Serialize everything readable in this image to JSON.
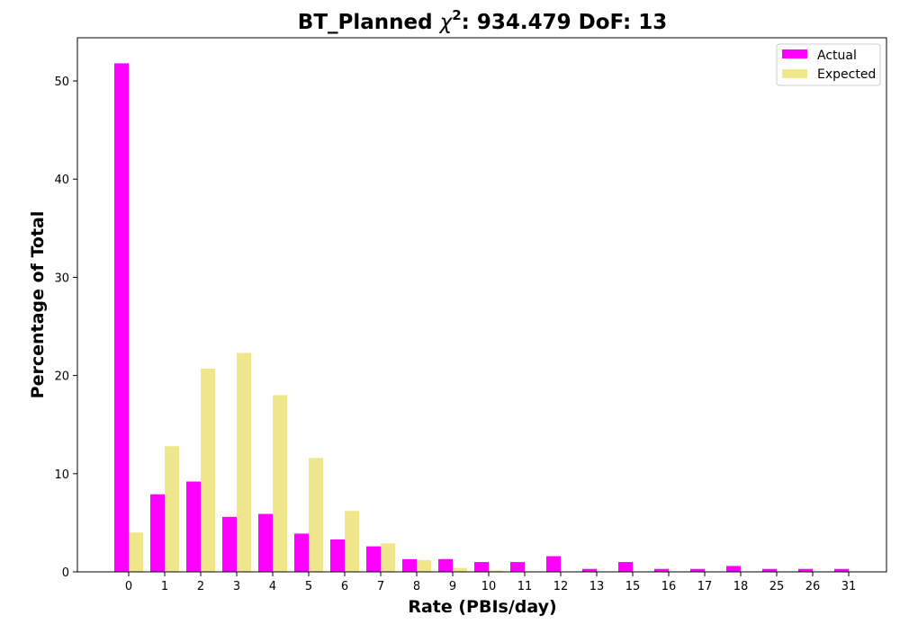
{
  "chart_data": {
    "type": "bar",
    "title": {
      "prefix": "BT_Planned ",
      "chi": "χ",
      "chi_sup": "2",
      "suffix": ": 934.479 DoF: 13"
    },
    "xlabel": "Rate (PBIs/day)",
    "ylabel": "Percentage of Total",
    "categories": [
      "0",
      "1",
      "2",
      "3",
      "4",
      "5",
      "6",
      "7",
      "8",
      "9",
      "10",
      "11",
      "12",
      "13",
      "15",
      "16",
      "17",
      "18",
      "25",
      "26",
      "31"
    ],
    "series": [
      {
        "name": "Actual",
        "color": "#ff00ff",
        "values": [
          51.8,
          7.9,
          9.2,
          5.6,
          5.9,
          3.9,
          3.3,
          2.6,
          1.3,
          1.3,
          1.0,
          1.0,
          1.6,
          0.3,
          1.0,
          0.3,
          0.3,
          0.6,
          0.3,
          0.3,
          0.3
        ]
      },
      {
        "name": "Expected",
        "color": "#f0e68c",
        "values": [
          4.0,
          12.8,
          20.7,
          22.3,
          18.0,
          11.6,
          6.2,
          2.9,
          1.2,
          0.4,
          0.15,
          0.05,
          0.0,
          0.0,
          0.0,
          0.0,
          0.0,
          0.0,
          0.0,
          0.0,
          0.0
        ]
      }
    ],
    "yticks": [
      0,
      10,
      20,
      30,
      40,
      50
    ],
    "ylim": [
      0,
      54.4
    ],
    "grid": false,
    "legend_position": "top-right"
  }
}
